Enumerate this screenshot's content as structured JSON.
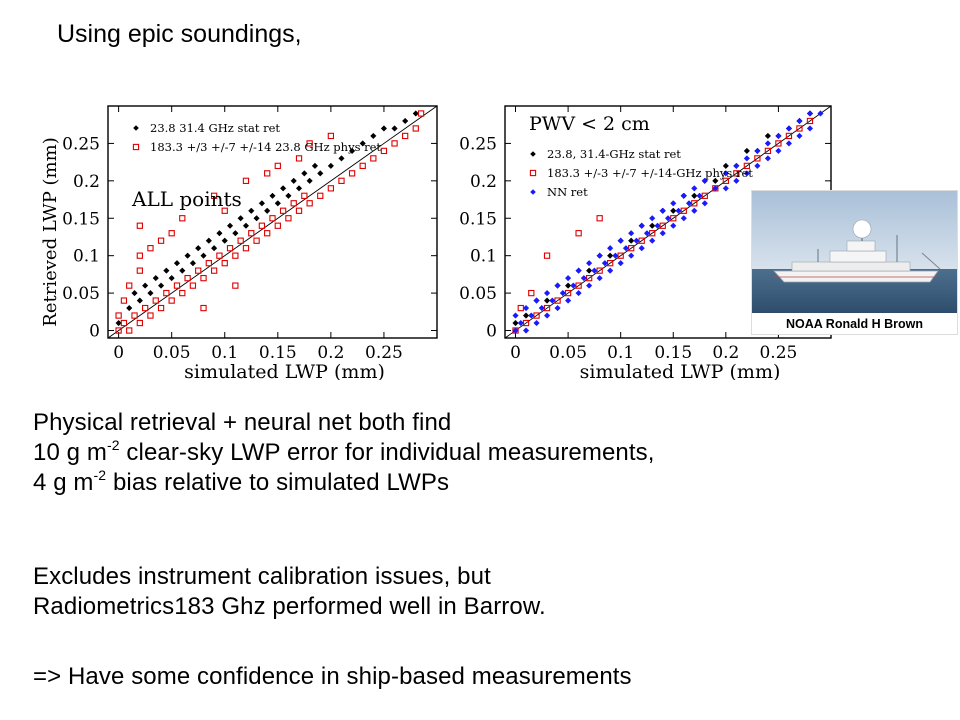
{
  "slide": {
    "title": "Using epic soundings,",
    "para1": {
      "line1": "Physical retrieval + neural net both find",
      "line2_pre": "10 g m",
      "line2_sup": "-2",
      "line2_post": " clear-sky LWP error for individual measurements,",
      "line3_pre": "4 g m",
      "line3_sup": "-2",
      "line3_post": " bias relative to simulated LWPs"
    },
    "para2": {
      "line1": "Excludes instrument calibration issues, but",
      "line2": "Radiometrics183 Ghz performed well in Barrow."
    },
    "para3": "=> Have some confidence in ship-based measurements",
    "photo_caption": "NOAA Ronald H Brown"
  },
  "chart_data": [
    {
      "type": "scatter",
      "annotation": "ALL points",
      "xlabel": "simulated LWP (mm)",
      "ylabel": "Retrieved LWP (mm)",
      "xlim": [
        -0.01,
        0.3
      ],
      "ylim": [
        -0.01,
        0.3
      ],
      "xticks": [
        "0",
        "0.05",
        "0.1",
        "0.15",
        "0.2",
        "0.25"
      ],
      "yticks": [
        "0",
        "0.05",
        "0.1",
        "0.15",
        "0.2",
        "0.25"
      ],
      "one_to_one_line": true,
      "legend_position": "top-left",
      "series": [
        {
          "name": "23.8 31.4 GHz stat ret",
          "marker": "diamond",
          "color": "#000000",
          "points": [
            [
              0.0,
              0.01
            ],
            [
              0.01,
              0.03
            ],
            [
              0.015,
              0.05
            ],
            [
              0.02,
              0.04
            ],
            [
              0.025,
              0.06
            ],
            [
              0.03,
              0.05
            ],
            [
              0.035,
              0.07
            ],
            [
              0.04,
              0.06
            ],
            [
              0.045,
              0.08
            ],
            [
              0.05,
              0.07
            ],
            [
              0.055,
              0.09
            ],
            [
              0.06,
              0.08
            ],
            [
              0.065,
              0.1
            ],
            [
              0.07,
              0.09
            ],
            [
              0.075,
              0.11
            ],
            [
              0.08,
              0.1
            ],
            [
              0.085,
              0.12
            ],
            [
              0.09,
              0.11
            ],
            [
              0.095,
              0.13
            ],
            [
              0.1,
              0.12
            ],
            [
              0.105,
              0.14
            ],
            [
              0.11,
              0.13
            ],
            [
              0.115,
              0.15
            ],
            [
              0.12,
              0.14
            ],
            [
              0.125,
              0.16
            ],
            [
              0.13,
              0.15
            ],
            [
              0.135,
              0.17
            ],
            [
              0.14,
              0.16
            ],
            [
              0.145,
              0.18
            ],
            [
              0.15,
              0.17
            ],
            [
              0.155,
              0.19
            ],
            [
              0.16,
              0.18
            ],
            [
              0.165,
              0.2
            ],
            [
              0.17,
              0.19
            ],
            [
              0.175,
              0.21
            ],
            [
              0.18,
              0.2
            ],
            [
              0.185,
              0.22
            ],
            [
              0.19,
              0.21
            ],
            [
              0.2,
              0.22
            ],
            [
              0.21,
              0.23
            ],
            [
              0.22,
              0.24
            ],
            [
              0.23,
              0.25
            ],
            [
              0.24,
              0.26
            ],
            [
              0.25,
              0.27
            ],
            [
              0.26,
              0.27
            ],
            [
              0.27,
              0.28
            ],
            [
              0.28,
              0.29
            ]
          ]
        },
        {
          "name": "183.3 +/3 +/-7 +/-14 23.8 GHz phys ret",
          "marker": "square",
          "color": "#e00000",
          "points": [
            [
              0.0,
              0.0
            ],
            [
              0.0,
              0.02
            ],
            [
              0.005,
              0.01
            ],
            [
              0.005,
              0.04
            ],
            [
              0.01,
              0.0
            ],
            [
              0.01,
              0.06
            ],
            [
              0.015,
              0.02
            ],
            [
              0.02,
              0.01
            ],
            [
              0.02,
              0.08
            ],
            [
              0.025,
              0.03
            ],
            [
              0.03,
              0.02
            ],
            [
              0.035,
              0.04
            ],
            [
              0.04,
              0.03
            ],
            [
              0.045,
              0.05
            ],
            [
              0.05,
              0.04
            ],
            [
              0.055,
              0.06
            ],
            [
              0.06,
              0.05
            ],
            [
              0.065,
              0.07
            ],
            [
              0.07,
              0.06
            ],
            [
              0.075,
              0.08
            ],
            [
              0.08,
              0.07
            ],
            [
              0.085,
              0.09
            ],
            [
              0.09,
              0.08
            ],
            [
              0.095,
              0.1
            ],
            [
              0.1,
              0.09
            ],
            [
              0.105,
              0.11
            ],
            [
              0.11,
              0.1
            ],
            [
              0.115,
              0.12
            ],
            [
              0.12,
              0.11
            ],
            [
              0.125,
              0.13
            ],
            [
              0.13,
              0.12
            ],
            [
              0.135,
              0.14
            ],
            [
              0.14,
              0.13
            ],
            [
              0.145,
              0.15
            ],
            [
              0.15,
              0.14
            ],
            [
              0.155,
              0.16
            ],
            [
              0.16,
              0.15
            ],
            [
              0.165,
              0.17
            ],
            [
              0.17,
              0.16
            ],
            [
              0.175,
              0.18
            ],
            [
              0.18,
              0.17
            ],
            [
              0.19,
              0.18
            ],
            [
              0.2,
              0.19
            ],
            [
              0.21,
              0.2
            ],
            [
              0.22,
              0.21
            ],
            [
              0.23,
              0.22
            ],
            [
              0.24,
              0.23
            ],
            [
              0.25,
              0.24
            ],
            [
              0.26,
              0.25
            ],
            [
              0.27,
              0.26
            ],
            [
              0.28,
              0.27
            ],
            [
              0.285,
              0.29
            ],
            [
              0.06,
              0.15
            ],
            [
              0.09,
              0.18
            ],
            [
              0.12,
              0.2
            ],
            [
              0.04,
              0.12
            ],
            [
              0.02,
              0.1
            ],
            [
              0.15,
              0.22
            ],
            [
              0.18,
              0.25
            ],
            [
              0.08,
              0.03
            ],
            [
              0.11,
              0.06
            ],
            [
              0.02,
              0.14
            ],
            [
              0.03,
              0.11
            ],
            [
              0.05,
              0.13
            ],
            [
              0.1,
              0.16
            ],
            [
              0.14,
              0.21
            ],
            [
              0.17,
              0.23
            ],
            [
              0.2,
              0.26
            ]
          ]
        }
      ]
    },
    {
      "type": "scatter",
      "annotation": "PWV < 2 cm",
      "xlabel": "simulated LWP (mm)",
      "ylabel": "",
      "xlim": [
        -0.01,
        0.3
      ],
      "ylim": [
        -0.01,
        0.3
      ],
      "xticks": [
        "0",
        "0.05",
        "0.1",
        "0.15",
        "0.2",
        "0.25"
      ],
      "yticks": [
        "0",
        "0.05",
        "0.1",
        "0.15",
        "0.2",
        "0.25"
      ],
      "one_to_one_line": true,
      "legend_position": "top-left",
      "series": [
        {
          "name": "23.8, 31.4-GHz stat ret",
          "marker": "diamond",
          "color": "#000000",
          "points": [
            [
              0.0,
              0.01
            ],
            [
              0.01,
              0.02
            ],
            [
              0.02,
              0.04
            ],
            [
              0.03,
              0.04
            ],
            [
              0.04,
              0.06
            ],
            [
              0.05,
              0.06
            ],
            [
              0.06,
              0.08
            ],
            [
              0.07,
              0.08
            ],
            [
              0.08,
              0.1
            ],
            [
              0.09,
              0.1
            ],
            [
              0.1,
              0.12
            ],
            [
              0.11,
              0.12
            ],
            [
              0.12,
              0.14
            ],
            [
              0.13,
              0.14
            ],
            [
              0.14,
              0.16
            ],
            [
              0.15,
              0.16
            ],
            [
              0.16,
              0.18
            ],
            [
              0.17,
              0.18
            ],
            [
              0.18,
              0.2
            ],
            [
              0.19,
              0.2
            ],
            [
              0.2,
              0.22
            ],
            [
              0.21,
              0.22
            ],
            [
              0.22,
              0.24
            ],
            [
              0.23,
              0.24
            ],
            [
              0.24,
              0.26
            ],
            [
              0.25,
              0.26
            ],
            [
              0.26,
              0.27
            ],
            [
              0.27,
              0.28
            ],
            [
              0.28,
              0.29
            ]
          ]
        },
        {
          "name": "183.3 +/-3 +/-7 +/-14-GHz phys ret",
          "marker": "square",
          "color": "#e00000",
          "points": [
            [
              0.0,
              0.0
            ],
            [
              0.005,
              0.03
            ],
            [
              0.01,
              0.01
            ],
            [
              0.015,
              0.05
            ],
            [
              0.02,
              0.02
            ],
            [
              0.03,
              0.03
            ],
            [
              0.04,
              0.04
            ],
            [
              0.05,
              0.05
            ],
            [
              0.06,
              0.06
            ],
            [
              0.07,
              0.07
            ],
            [
              0.08,
              0.08
            ],
            [
              0.09,
              0.09
            ],
            [
              0.1,
              0.1
            ],
            [
              0.11,
              0.11
            ],
            [
              0.12,
              0.12
            ],
            [
              0.13,
              0.13
            ],
            [
              0.14,
              0.14
            ],
            [
              0.15,
              0.15
            ],
            [
              0.16,
              0.16
            ],
            [
              0.17,
              0.17
            ],
            [
              0.18,
              0.18
            ],
            [
              0.19,
              0.19
            ],
            [
              0.2,
              0.2
            ],
            [
              0.21,
              0.21
            ],
            [
              0.22,
              0.22
            ],
            [
              0.23,
              0.23
            ],
            [
              0.24,
              0.24
            ],
            [
              0.25,
              0.25
            ],
            [
              0.26,
              0.26
            ],
            [
              0.27,
              0.27
            ],
            [
              0.28,
              0.28
            ],
            [
              0.03,
              0.1
            ],
            [
              0.06,
              0.13
            ],
            [
              0.08,
              0.15
            ]
          ]
        },
        {
          "name": "NN ret",
          "marker": "diamond",
          "color": "#1a1aff",
          "points": [
            [
              0.0,
              0.0
            ],
            [
              0.0,
              0.02
            ],
            [
              0.005,
              0.01
            ],
            [
              0.01,
              0.0
            ],
            [
              0.01,
              0.03
            ],
            [
              0.015,
              0.02
            ],
            [
              0.02,
              0.01
            ],
            [
              0.02,
              0.04
            ],
            [
              0.025,
              0.03
            ],
            [
              0.03,
              0.02
            ],
            [
              0.03,
              0.05
            ],
            [
              0.035,
              0.04
            ],
            [
              0.04,
              0.03
            ],
            [
              0.04,
              0.06
            ],
            [
              0.045,
              0.05
            ],
            [
              0.05,
              0.04
            ],
            [
              0.05,
              0.07
            ],
            [
              0.055,
              0.06
            ],
            [
              0.06,
              0.05
            ],
            [
              0.06,
              0.08
            ],
            [
              0.065,
              0.07
            ],
            [
              0.07,
              0.06
            ],
            [
              0.07,
              0.09
            ],
            [
              0.075,
              0.08
            ],
            [
              0.08,
              0.07
            ],
            [
              0.08,
              0.1
            ],
            [
              0.085,
              0.09
            ],
            [
              0.09,
              0.08
            ],
            [
              0.09,
              0.11
            ],
            [
              0.095,
              0.1
            ],
            [
              0.1,
              0.09
            ],
            [
              0.1,
              0.12
            ],
            [
              0.105,
              0.11
            ],
            [
              0.11,
              0.1
            ],
            [
              0.11,
              0.13
            ],
            [
              0.115,
              0.12
            ],
            [
              0.12,
              0.11
            ],
            [
              0.12,
              0.14
            ],
            [
              0.125,
              0.13
            ],
            [
              0.13,
              0.12
            ],
            [
              0.13,
              0.15
            ],
            [
              0.135,
              0.14
            ],
            [
              0.14,
              0.13
            ],
            [
              0.14,
              0.16
            ],
            [
              0.145,
              0.15
            ],
            [
              0.15,
              0.14
            ],
            [
              0.15,
              0.17
            ],
            [
              0.155,
              0.16
            ],
            [
              0.16,
              0.15
            ],
            [
              0.16,
              0.18
            ],
            [
              0.165,
              0.17
            ],
            [
              0.17,
              0.16
            ],
            [
              0.17,
              0.19
            ],
            [
              0.175,
              0.18
            ],
            [
              0.18,
              0.17
            ],
            [
              0.18,
              0.2
            ],
            [
              0.19,
              0.19
            ],
            [
              0.2,
              0.19
            ],
            [
              0.2,
              0.21
            ],
            [
              0.21,
              0.2
            ],
            [
              0.21,
              0.22
            ],
            [
              0.22,
              0.21
            ],
            [
              0.22,
              0.23
            ],
            [
              0.23,
              0.22
            ],
            [
              0.23,
              0.24
            ],
            [
              0.24,
              0.23
            ],
            [
              0.24,
              0.25
            ],
            [
              0.25,
              0.24
            ],
            [
              0.25,
              0.26
            ],
            [
              0.26,
              0.25
            ],
            [
              0.26,
              0.27
            ],
            [
              0.27,
              0.26
            ],
            [
              0.27,
              0.28
            ],
            [
              0.28,
              0.27
            ],
            [
              0.28,
              0.29
            ],
            [
              0.29,
              0.29
            ]
          ]
        }
      ]
    }
  ]
}
